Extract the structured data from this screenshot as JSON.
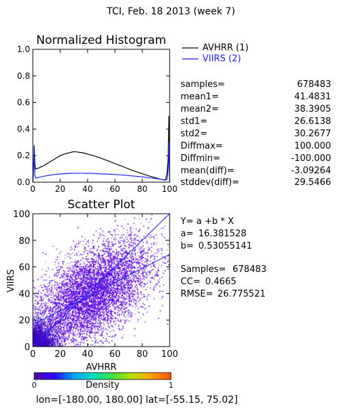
{
  "page": {
    "title": "TCI,  Feb. 18 2013 (week 7)",
    "footer_lon_label": "lon=[",
    "footer_lon_value": "-180.00, 180.00",
    "footer_lat_label": "] lat=[",
    "footer_lat_value": "-55.15, 75.02",
    "footer_end": "]"
  },
  "histogram": {
    "title": "Normalized Histogram",
    "legend": [
      {
        "name": "AVHRR (1)",
        "color": "#000000"
      },
      {
        "name": "VIIRS (2)",
        "color": "#2020ff"
      }
    ],
    "stats": [
      {
        "label": "samples=",
        "value": "678483"
      },
      {
        "label": "mean1=",
        "value": "41.4831"
      },
      {
        "label": "mean2=",
        "value": "38.3905"
      },
      {
        "label": "std1=",
        "value": "26.6138"
      },
      {
        "label": "std2=",
        "value": "30.2677"
      },
      {
        "label": "Diffmax=",
        "value": "100.000"
      },
      {
        "label": "Diffmin=",
        "value": "-100.000"
      },
      {
        "label": "mean(diff)=",
        "value": "-3.09264"
      },
      {
        "label": "stddev(diff)=",
        "value": "29.5466"
      }
    ]
  },
  "scatter": {
    "title": "Scatter Plot",
    "fit": {
      "equation": "Y= a +b * X",
      "a_label": "a=",
      "a_value": "16.381528",
      "b_label": "b=",
      "b_value": "0.53055141",
      "samples_label": "Samples=",
      "samples_value": "678483",
      "cc_label": "CC=",
      "cc_value": "0.4665",
      "rmse_label": "RMSE=",
      "rmse_value": "26.775521"
    },
    "point_color": "#5a00e0",
    "line_color": "#2020ff",
    "diag_color": "#2020ff"
  },
  "colorbar": {
    "label": "Density",
    "min_label": "0",
    "max_label": "1",
    "colors": [
      "#5000a0",
      "#3000ff",
      "#00a0ff",
      "#00e0c0",
      "#40e040",
      "#c0e000",
      "#ffa000",
      "#ff5000"
    ]
  },
  "chart_data": [
    {
      "type": "line",
      "title": "Normalized Histogram",
      "xlim": [
        0,
        100
      ],
      "ylim": [
        0,
        1.0
      ],
      "xticks": [
        0,
        20,
        40,
        60,
        80,
        100
      ],
      "yticks": [
        0.0,
        0.2,
        0.4,
        0.6,
        0.8,
        1.0
      ],
      "xtick_labels": [
        "0",
        "20",
        "40",
        "60",
        "80",
        "100"
      ],
      "ytick_labels": [
        "0.0",
        "0.2",
        "0.4",
        "0.6",
        "0.8",
        "1.0"
      ],
      "series": [
        {
          "name": "AVHRR (1)",
          "x": [
            0,
            0.5,
            1,
            1.5,
            2,
            4,
            8,
            12,
            16,
            20,
            24,
            28,
            30,
            32,
            36,
            40,
            44,
            48,
            52,
            56,
            60,
            64,
            68,
            72,
            76,
            80,
            84,
            88,
            92,
            96,
            97,
            98,
            98.5,
            99,
            99.5,
            100
          ],
          "y": [
            0.0,
            0.08,
            0.27,
            0.14,
            0.1,
            0.105,
            0.125,
            0.15,
            0.175,
            0.2,
            0.215,
            0.225,
            0.23,
            0.228,
            0.222,
            0.212,
            0.2,
            0.187,
            0.172,
            0.157,
            0.14,
            0.125,
            0.108,
            0.092,
            0.078,
            0.064,
            0.05,
            0.038,
            0.026,
            0.016,
            0.02,
            0.06,
            0.12,
            0.2,
            0.5,
            0.0
          ]
        },
        {
          "name": "VIIRS (2)",
          "x": [
            0,
            0.5,
            1,
            1.5,
            2,
            4,
            8,
            12,
            16,
            20,
            24,
            28,
            32,
            36,
            40,
            44,
            48,
            52,
            56,
            60,
            64,
            68,
            72,
            76,
            80,
            84,
            88,
            92,
            96,
            97,
            98,
            98.5,
            99,
            99.5,
            100
          ],
          "y": [
            0.0,
            0.1,
            0.28,
            0.05,
            0.03,
            0.035,
            0.045,
            0.052,
            0.058,
            0.062,
            0.065,
            0.067,
            0.068,
            0.068,
            0.067,
            0.066,
            0.064,
            0.062,
            0.06,
            0.058,
            0.055,
            0.052,
            0.048,
            0.044,
            0.04,
            0.035,
            0.03,
            0.024,
            0.018,
            0.015,
            0.02,
            0.05,
            0.1,
            0.3,
            0.0
          ]
        }
      ]
    },
    {
      "type": "scatter",
      "title": "Scatter Plot",
      "xlabel": "AVHRR",
      "ylabel": "VIIRS",
      "xlim": [
        0,
        100
      ],
      "ylim": [
        0,
        100
      ],
      "xticks": [
        0,
        20,
        40,
        60,
        80,
        100
      ],
      "yticks": [
        0,
        20,
        40,
        60,
        80,
        100
      ],
      "xtick_labels": [
        "0",
        "20",
        "40",
        "60",
        "80",
        "100"
      ],
      "ytick_labels": [
        "0",
        "20",
        "40",
        "60",
        "80",
        "100"
      ],
      "fit_line": {
        "a": 16.381528,
        "b": 0.53055141
      },
      "one_to_one_line": true
    }
  ]
}
